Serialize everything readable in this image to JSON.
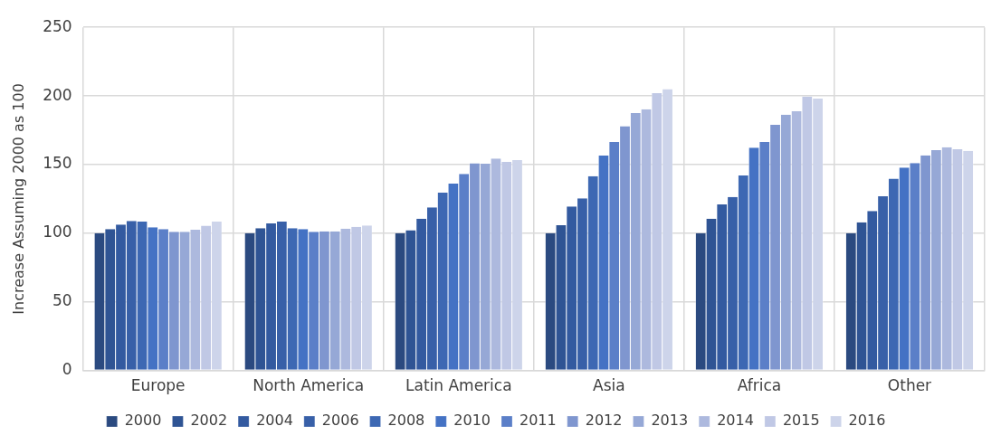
{
  "chart_data": {
    "type": "bar",
    "ylabel": "Increase Assuming 2000 as 100",
    "categories": [
      "Europe",
      "North America",
      "Latin America",
      "Asia",
      "Africa",
      "Other"
    ],
    "ylim": [
      0,
      250
    ],
    "yticks": [
      0,
      50,
      100,
      150,
      200,
      250
    ],
    "grid": true,
    "legend": "bottom",
    "series": [
      {
        "name": "2000",
        "color": "#2b4a80",
        "values": [
          100,
          100,
          100,
          100,
          100,
          100
        ]
      },
      {
        "name": "2002",
        "color": "#2f5494",
        "values": [
          103,
          103.7,
          102.2,
          105.9,
          110.6,
          107.9
        ]
      },
      {
        "name": "2004",
        "color": "#335aa0",
        "values": [
          106.4,
          107.2,
          110.6,
          119.5,
          121,
          116.2
        ]
      },
      {
        "name": "2006",
        "color": "#3860a8",
        "values": [
          109,
          108.4,
          118.8,
          125.4,
          126.4,
          126.9
        ]
      },
      {
        "name": "2008",
        "color": "#3d68b3",
        "values": [
          108.4,
          103.7,
          129.5,
          141.5,
          142.1,
          139.7
        ]
      },
      {
        "name": "2010",
        "color": "#4472c4",
        "values": [
          104.4,
          103.1,
          136.1,
          156.5,
          162.3,
          147.8
        ]
      },
      {
        "name": "2011",
        "color": "#5b7fc8",
        "values": [
          103.1,
          101,
          143.2,
          166.4,
          166.4,
          151.1
        ]
      },
      {
        "name": "2012",
        "color": "#7f96cf",
        "values": [
          101.1,
          101.3,
          151,
          178,
          178.9,
          156.8
        ]
      },
      {
        "name": "2013",
        "color": "#96a8d6",
        "values": [
          101.1,
          101.3,
          150.6,
          187.5,
          186.4,
          160.5
        ]
      },
      {
        "name": "2014",
        "color": "#adb9de",
        "values": [
          102.6,
          103.3,
          154.5,
          190.3,
          188.8,
          162.7
        ]
      },
      {
        "name": "2015",
        "color": "#c0c8e5",
        "values": [
          105.5,
          104.6,
          151.9,
          202.1,
          199.5,
          161.2
        ]
      },
      {
        "name": "2016",
        "color": "#cdd4ea",
        "values": [
          108.4,
          105.7,
          153.2,
          205,
          198,
          160.1
        ]
      }
    ]
  }
}
